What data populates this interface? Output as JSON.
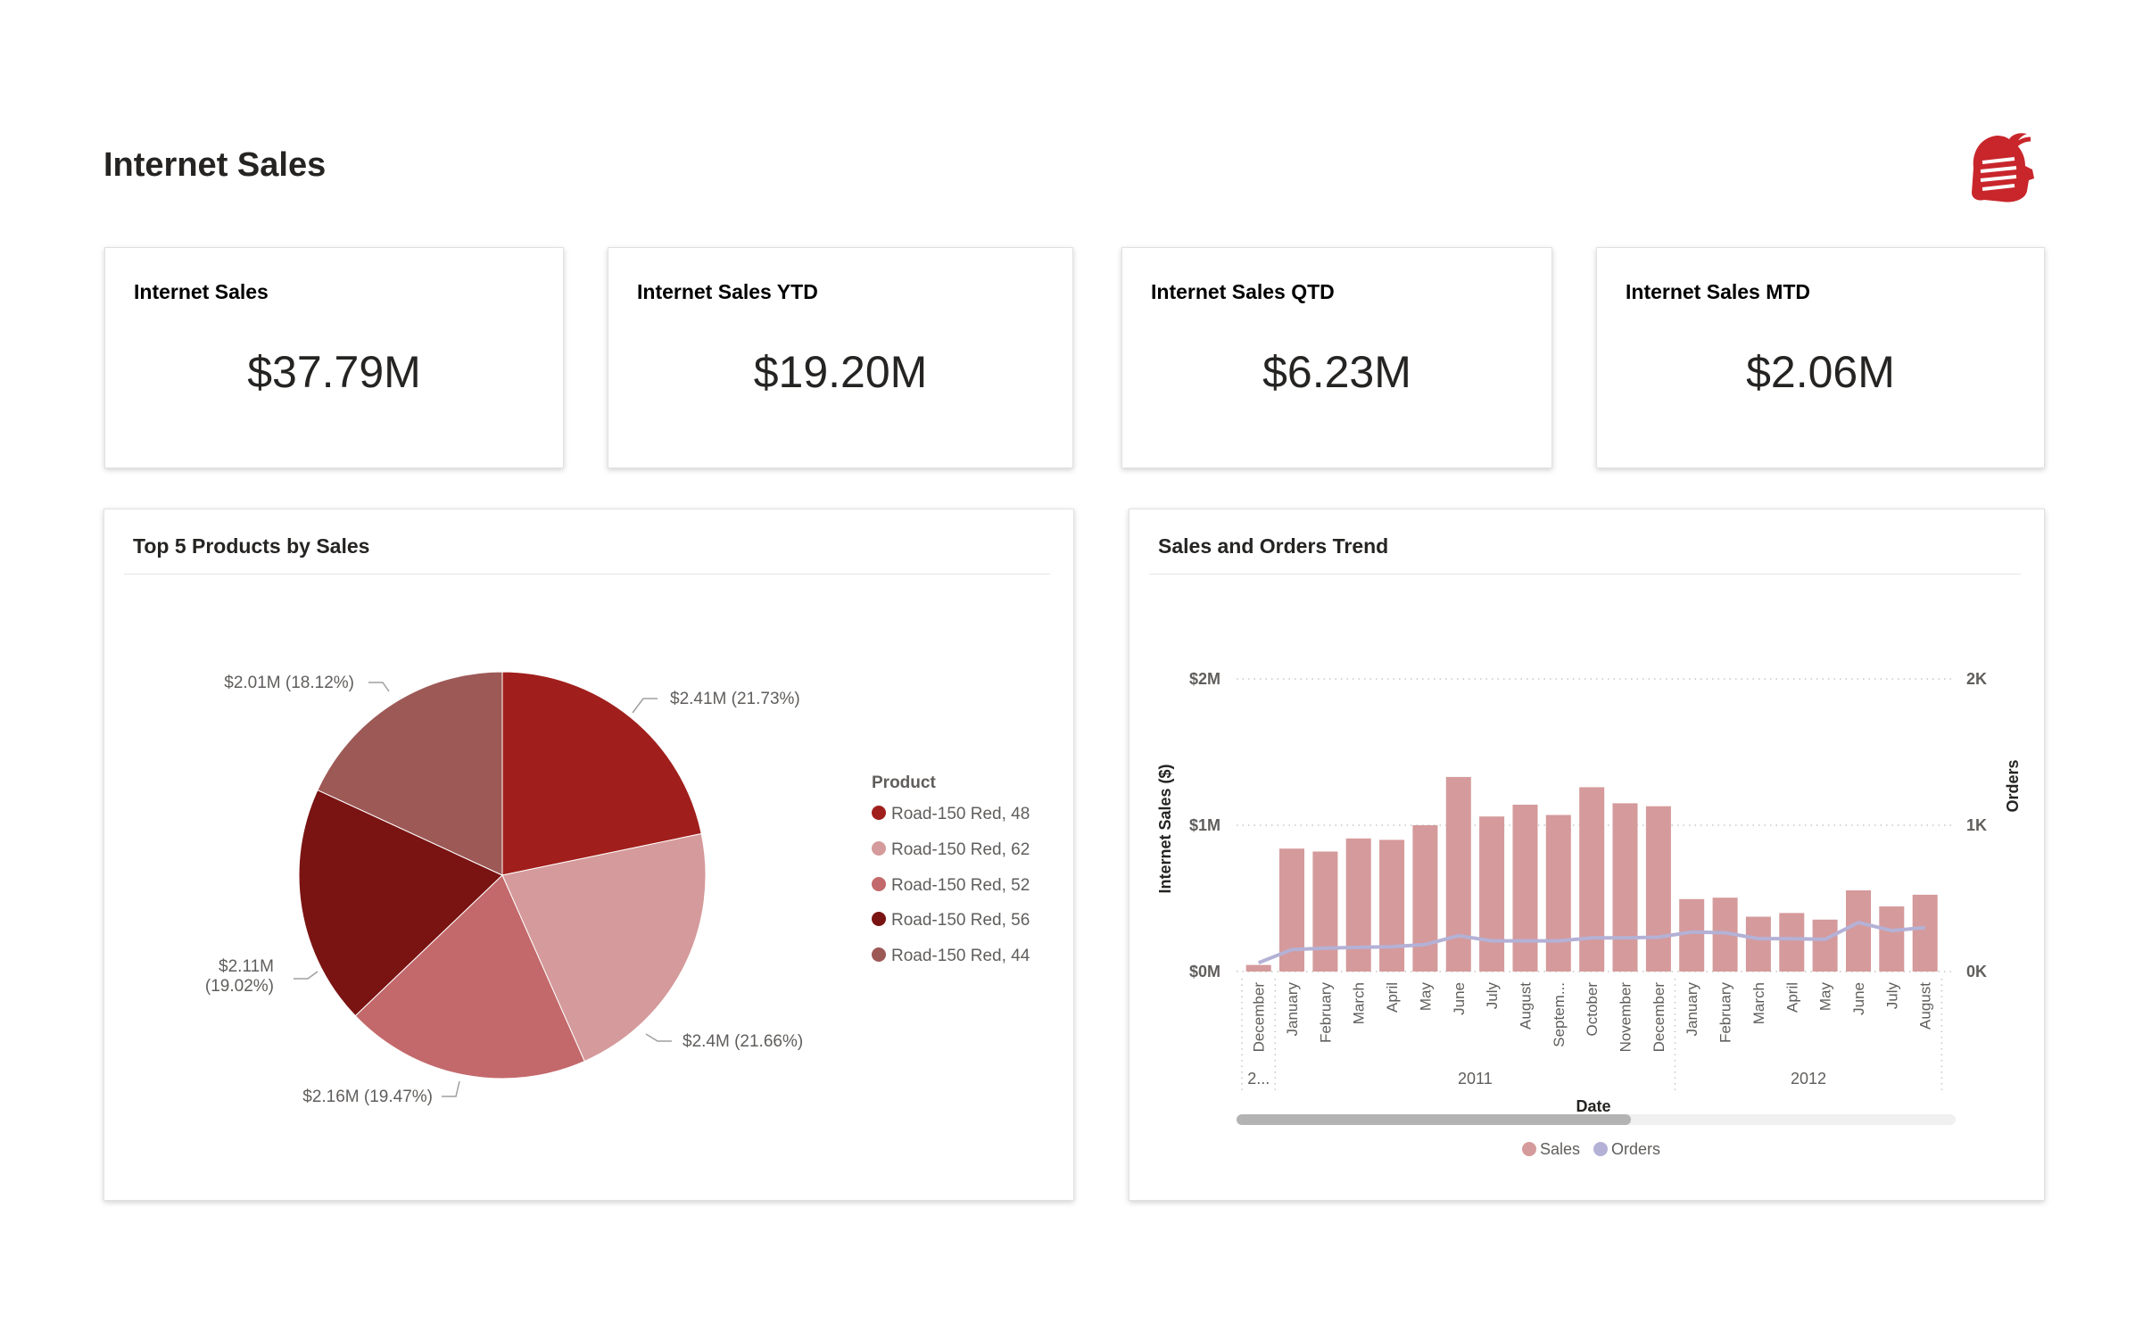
{
  "page": {
    "title": "Internet Sales"
  },
  "kpis": [
    {
      "title": "Internet Sales",
      "value": "$37.79M"
    },
    {
      "title": "Internet Sales YTD",
      "value": "$19.20M"
    },
    {
      "title": "Internet Sales QTD",
      "value": "$6.23M"
    },
    {
      "title": "Internet Sales MTD",
      "value": "$2.06M"
    }
  ],
  "pie_panel": {
    "title": "Top 5 Products by Sales",
    "legend_title": "Product"
  },
  "trend_panel": {
    "title": "Sales and Orders Trend"
  },
  "colors": {
    "pie": [
      "#a01f1c",
      "#d59a9b",
      "#c3696b",
      "#7a1413",
      "#9d5956"
    ],
    "bars": "#d59a9b",
    "line": "#b4b1d6",
    "axis_text": "#605e5c"
  },
  "chart_data": [
    {
      "type": "pie",
      "title": "Top 5 Products by Sales",
      "legend_title": "Product",
      "slices": [
        {
          "label": "Road-150 Red, 48",
          "value": 2.41,
          "data_label": "$2.41M (21.73%)"
        },
        {
          "label": "Road-150 Red, 62",
          "value": 2.4,
          "data_label": "$2.4M (21.66%)"
        },
        {
          "label": "Road-150 Red, 52",
          "value": 2.16,
          "data_label": "$2.16M (19.47%)"
        },
        {
          "label": "Road-150 Red, 56",
          "value": 2.11,
          "data_label_line1": "$2.11M",
          "data_label_line2": "(19.02%)"
        },
        {
          "label": "Road-150 Red, 44",
          "value": 2.01,
          "data_label": "$2.01M (18.12%)"
        }
      ]
    },
    {
      "type": "bar",
      "title": "Sales and Orders Trend",
      "xlabel": "Date",
      "ylabel": "Internet Sales ($)",
      "y2label": "Orders",
      "ylim": [
        0,
        2000000
      ],
      "y2lim": [
        0,
        2000
      ],
      "yticks": [
        "$0M",
        "$1M",
        "$2M"
      ],
      "y2ticks": [
        "0K",
        "1K",
        "2K"
      ],
      "categories": [
        "December",
        "January",
        "February",
        "March",
        "April",
        "May",
        "June",
        "July",
        "August",
        "Septem...",
        "October",
        "November",
        "December",
        "January",
        "February",
        "March",
        "April",
        "May",
        "June",
        "July",
        "August"
      ],
      "year_groups": [
        {
          "label": "2...",
          "count": 1
        },
        {
          "label": "2011",
          "count": 12
        },
        {
          "label": "2012",
          "count": 8
        }
      ],
      "series": [
        {
          "name": "Sales",
          "kind": "bar",
          "values": [
            45000,
            840000,
            820000,
            910000,
            900000,
            1000000,
            1330000,
            1060000,
            1140000,
            1070000,
            1260000,
            1150000,
            1130000,
            495000,
            505000,
            375000,
            400000,
            355000,
            555000,
            445000,
            525000
          ]
        },
        {
          "name": "Orders",
          "kind": "line",
          "values": [
            60,
            150,
            160,
            165,
            170,
            185,
            245,
            210,
            210,
            210,
            230,
            230,
            235,
            270,
            265,
            225,
            225,
            220,
            335,
            280,
            300
          ]
        }
      ],
      "legend": [
        "Sales",
        "Orders"
      ]
    }
  ]
}
